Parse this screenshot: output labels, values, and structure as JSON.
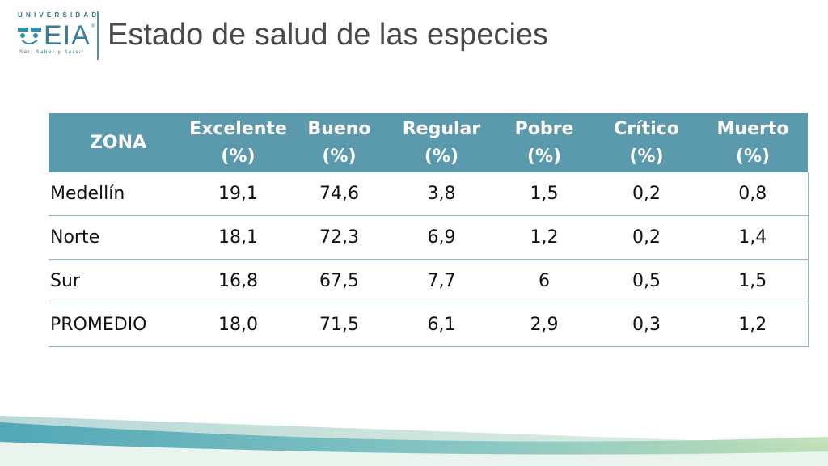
{
  "header": {
    "logo_top": "UNIVERSIDAD",
    "logo_name": "EIA",
    "logo_reg": "®",
    "logo_tagline": "Ser, Saber y Servir",
    "title": "Estado de salud de las especies"
  },
  "table": {
    "columns": [
      {
        "line1": "ZONA",
        "line2": ""
      },
      {
        "line1": "Excelente",
        "line2": "(%)"
      },
      {
        "line1": "Bueno",
        "line2": "(%)"
      },
      {
        "line1": "Regular",
        "line2": "(%)"
      },
      {
        "line1": "Pobre",
        "line2": "(%)"
      },
      {
        "line1": "Crítico",
        "line2": "(%)"
      },
      {
        "line1": "Muerto",
        "line2": "(%)"
      }
    ],
    "rows": [
      [
        "Medellín",
        "19,1",
        "74,6",
        "3,8",
        "1,5",
        "0,2",
        "0,8"
      ],
      [
        "Norte",
        "18,1",
        "72,3",
        "6,9",
        "1,2",
        "0,2",
        "1,4"
      ],
      [
        "Sur",
        "16,8",
        "67,5",
        "7,7",
        "6",
        "0,5",
        "1,5"
      ],
      [
        "PROMEDIO",
        "18,0",
        "71,5",
        "6,1",
        "2,9",
        "0,3",
        "1,2"
      ]
    ]
  },
  "colors": {
    "header_bg": "#5b9aad",
    "accent": "#3a7d97",
    "deco_teal": "#6fb3b8",
    "deco_green": "#a9cf9a"
  }
}
